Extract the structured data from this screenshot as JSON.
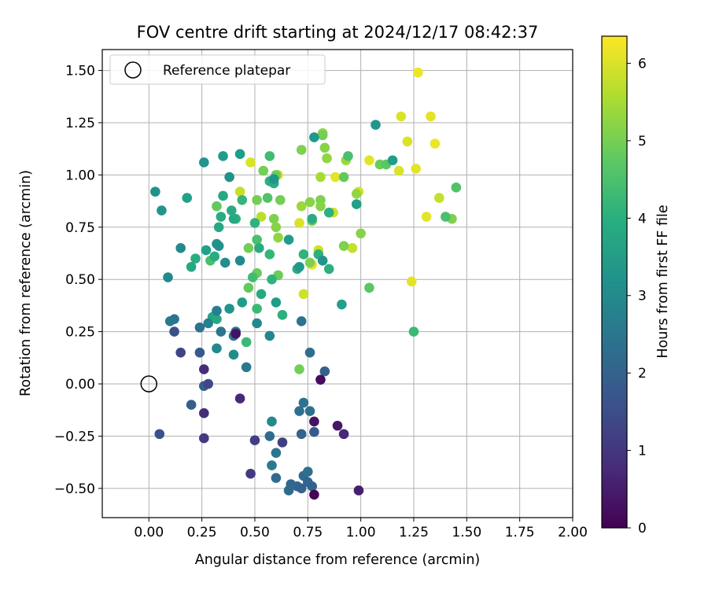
{
  "chart_data": {
    "type": "scatter",
    "title": "FOV centre drift starting at 2024/12/17 08:42:37",
    "xlabel": "Angular distance from reference (arcmin)",
    "ylabel": "Rotation from reference (arcmin)",
    "xlim": [
      -0.22,
      2.0
    ],
    "ylim": [
      -0.64,
      1.6
    ],
    "x_ticks": [
      "0.00",
      "0.25",
      "0.50",
      "0.75",
      "1.00",
      "1.25",
      "1.50",
      "1.75",
      "2.00"
    ],
    "y_ticks": [
      "−0.50",
      "−0.25",
      "0.00",
      "0.25",
      "0.50",
      "0.75",
      "1.00",
      "1.25",
      "1.50"
    ],
    "x_tick_values": [
      0,
      0.25,
      0.5,
      0.75,
      1.0,
      1.25,
      1.5,
      1.75,
      2.0
    ],
    "y_tick_values": [
      -0.5,
      -0.25,
      0,
      0.25,
      0.5,
      0.75,
      1.0,
      1.25,
      1.5
    ],
    "grid": true,
    "legend": {
      "position": "top-left",
      "entries": [
        "Reference platepar"
      ]
    },
    "reference_point": {
      "x": 0.0,
      "y": 0.0,
      "label": "Reference platepar"
    },
    "colorbar": {
      "label": "Hours from first FF file",
      "range": [
        0,
        6.35
      ],
      "ticks": [
        "0",
        "1",
        "2",
        "3",
        "4",
        "5",
        "6"
      ],
      "tick_values": [
        0,
        1,
        2,
        3,
        4,
        5,
        6
      ],
      "colormap": "viridis"
    },
    "points": [
      {
        "x": 1.27,
        "y": 1.49,
        "h": 6.2
      },
      {
        "x": 1.19,
        "y": 1.28,
        "h": 6.0
      },
      {
        "x": 1.33,
        "y": 1.28,
        "h": 6.1
      },
      {
        "x": 1.22,
        "y": 1.16,
        "h": 6.0
      },
      {
        "x": 1.35,
        "y": 1.15,
        "h": 6.2
      },
      {
        "x": 1.04,
        "y": 1.07,
        "h": 6.1
      },
      {
        "x": 1.18,
        "y": 1.02,
        "h": 6.0
      },
      {
        "x": 1.26,
        "y": 1.03,
        "h": 6.1
      },
      {
        "x": 0.48,
        "y": 1.06,
        "h": 6.0
      },
      {
        "x": 0.61,
        "y": 1.0,
        "h": 6.0
      },
      {
        "x": 0.88,
        "y": 0.99,
        "h": 6.1
      },
      {
        "x": 0.99,
        "y": 0.92,
        "h": 6.0
      },
      {
        "x": 1.37,
        "y": 0.89,
        "h": 5.8
      },
      {
        "x": 1.31,
        "y": 0.8,
        "h": 6.1
      },
      {
        "x": 0.87,
        "y": 0.82,
        "h": 5.9
      },
      {
        "x": 0.71,
        "y": 0.77,
        "h": 6.0
      },
      {
        "x": 0.8,
        "y": 0.64,
        "h": 5.9
      },
      {
        "x": 0.96,
        "y": 0.65,
        "h": 5.8
      },
      {
        "x": 0.77,
        "y": 0.57,
        "h": 6.2
      },
      {
        "x": 1.24,
        "y": 0.49,
        "h": 6.1
      },
      {
        "x": 0.73,
        "y": 0.43,
        "h": 5.9
      },
      {
        "x": 0.43,
        "y": 0.92,
        "h": 5.8
      },
      {
        "x": 0.53,
        "y": 0.8,
        "h": 5.7
      },
      {
        "x": 0.82,
        "y": 1.2,
        "h": 5.3
      },
      {
        "x": 0.83,
        "y": 1.13,
        "h": 5.2
      },
      {
        "x": 0.82,
        "y": 1.19,
        "h": 5.0
      },
      {
        "x": 0.72,
        "y": 1.12,
        "h": 5.1
      },
      {
        "x": 0.84,
        "y": 1.08,
        "h": 5.3
      },
      {
        "x": 0.81,
        "y": 0.99,
        "h": 5.5
      },
      {
        "x": 0.93,
        "y": 1.07,
        "h": 5.4
      },
      {
        "x": 0.72,
        "y": 0.85,
        "h": 5.4
      },
      {
        "x": 0.76,
        "y": 0.87,
        "h": 5.2
      },
      {
        "x": 0.81,
        "y": 0.88,
        "h": 5.1
      },
      {
        "x": 0.81,
        "y": 0.85,
        "h": 5.2
      },
      {
        "x": 0.77,
        "y": 0.78,
        "h": 5.0
      },
      {
        "x": 0.98,
        "y": 0.91,
        "h": 5.3
      },
      {
        "x": 1.0,
        "y": 0.72,
        "h": 5.2
      },
      {
        "x": 0.92,
        "y": 0.66,
        "h": 5.1
      },
      {
        "x": 0.76,
        "y": 0.58,
        "h": 5.1
      },
      {
        "x": 0.59,
        "y": 0.79,
        "h": 5.1
      },
      {
        "x": 0.6,
        "y": 0.75,
        "h": 5.2
      },
      {
        "x": 0.61,
        "y": 0.7,
        "h": 5.3
      },
      {
        "x": 0.62,
        "y": 0.88,
        "h": 5.0
      },
      {
        "x": 0.54,
        "y": 1.02,
        "h": 5.0
      },
      {
        "x": 0.6,
        "y": 1.0,
        "h": 4.9
      },
      {
        "x": 0.51,
        "y": 0.88,
        "h": 5.0
      },
      {
        "x": 0.47,
        "y": 0.65,
        "h": 5.0
      },
      {
        "x": 0.61,
        "y": 0.52,
        "h": 4.9
      },
      {
        "x": 0.51,
        "y": 0.53,
        "h": 4.9
      },
      {
        "x": 0.47,
        "y": 0.46,
        "h": 4.8
      },
      {
        "x": 0.71,
        "y": 0.07,
        "h": 5.0
      },
      {
        "x": 0.32,
        "y": 0.85,
        "h": 4.8
      },
      {
        "x": 0.29,
        "y": 0.59,
        "h": 4.5
      },
      {
        "x": 1.04,
        "y": 0.46,
        "h": 4.7
      },
      {
        "x": 0.92,
        "y": 0.99,
        "h": 4.8
      },
      {
        "x": 1.09,
        "y": 1.05,
        "h": 4.9
      },
      {
        "x": 1.12,
        "y": 1.05,
        "h": 4.7
      },
      {
        "x": 1.43,
        "y": 0.79,
        "h": 5.1
      },
      {
        "x": 1.45,
        "y": 0.94,
        "h": 4.6
      },
      {
        "x": 1.4,
        "y": 0.8,
        "h": 4.5
      },
      {
        "x": 0.94,
        "y": 1.09,
        "h": 4.5
      },
      {
        "x": 0.56,
        "y": 0.89,
        "h": 4.6
      },
      {
        "x": 1.25,
        "y": 0.25,
        "h": 4.3
      },
      {
        "x": 0.46,
        "y": 0.2,
        "h": 4.3
      },
      {
        "x": 0.49,
        "y": 0.51,
        "h": 4.4
      },
      {
        "x": 0.51,
        "y": 0.36,
        "h": 4.3
      },
      {
        "x": 0.51,
        "y": 0.69,
        "h": 4.5
      },
      {
        "x": 0.58,
        "y": 0.5,
        "h": 4.1
      },
      {
        "x": 0.57,
        "y": 0.97,
        "h": 4.0
      },
      {
        "x": 0.59,
        "y": 0.96,
        "h": 3.9
      },
      {
        "x": 0.57,
        "y": 1.09,
        "h": 4.4
      },
      {
        "x": 0.44,
        "y": 0.88,
        "h": 4.2
      },
      {
        "x": 0.5,
        "y": 0.77,
        "h": 4.1
      },
      {
        "x": 0.57,
        "y": 0.62,
        "h": 4.2
      },
      {
        "x": 0.52,
        "y": 0.65,
        "h": 3.9
      },
      {
        "x": 0.53,
        "y": 0.43,
        "h": 3.8
      },
      {
        "x": 0.63,
        "y": 0.33,
        "h": 4.0
      },
      {
        "x": 0.73,
        "y": 0.62,
        "h": 4.1
      },
      {
        "x": 0.8,
        "y": 0.62,
        "h": 4.0
      },
      {
        "x": 0.85,
        "y": 0.55,
        "h": 4.0
      },
      {
        "x": 0.7,
        "y": 0.55,
        "h": 3.9
      },
      {
        "x": 0.77,
        "y": 0.79,
        "h": 3.9
      },
      {
        "x": 0.85,
        "y": 0.82,
        "h": 4.0
      },
      {
        "x": 0.41,
        "y": 0.79,
        "h": 4.1
      },
      {
        "x": 0.34,
        "y": 0.8,
        "h": 3.9
      },
      {
        "x": 0.39,
        "y": 0.83,
        "h": 3.9
      },
      {
        "x": 0.4,
        "y": 0.79,
        "h": 3.8
      },
      {
        "x": 0.31,
        "y": 0.61,
        "h": 3.9
      },
      {
        "x": 0.22,
        "y": 0.6,
        "h": 3.9
      },
      {
        "x": 0.2,
        "y": 0.56,
        "h": 3.8
      },
      {
        "x": 0.3,
        "y": 0.32,
        "h": 3.7
      },
      {
        "x": 0.32,
        "y": 0.31,
        "h": 3.8
      },
      {
        "x": 0.33,
        "y": 0.75,
        "h": 3.8
      },
      {
        "x": 0.35,
        "y": 0.9,
        "h": 3.8
      },
      {
        "x": 0.27,
        "y": 0.64,
        "h": 3.6
      },
      {
        "x": 0.18,
        "y": 0.89,
        "h": 3.6
      },
      {
        "x": 0.35,
        "y": 1.09,
        "h": 3.5
      },
      {
        "x": 0.43,
        "y": 1.1,
        "h": 3.5
      },
      {
        "x": 0.78,
        "y": 1.18,
        "h": 3.4
      },
      {
        "x": 1.07,
        "y": 1.24,
        "h": 3.4
      },
      {
        "x": 1.15,
        "y": 1.07,
        "h": 3.5
      },
      {
        "x": 0.98,
        "y": 0.86,
        "h": 3.6
      },
      {
        "x": 0.91,
        "y": 0.38,
        "h": 3.6
      },
      {
        "x": 0.6,
        "y": 0.39,
        "h": 3.5
      },
      {
        "x": 0.44,
        "y": 0.39,
        "h": 3.5
      },
      {
        "x": 0.38,
        "y": 0.36,
        "h": 3.3
      },
      {
        "x": 0.32,
        "y": 0.67,
        "h": 3.3
      },
      {
        "x": 0.26,
        "y": 1.06,
        "h": 3.3
      },
      {
        "x": 0.33,
        "y": 0.66,
        "h": 3.2
      },
      {
        "x": 0.66,
        "y": 0.69,
        "h": 3.5
      },
      {
        "x": 0.71,
        "y": 0.56,
        "h": 3.4
      },
      {
        "x": 0.82,
        "y": 0.59,
        "h": 3.3
      },
      {
        "x": 0.36,
        "y": 0.58,
        "h": 3.1
      },
      {
        "x": 0.43,
        "y": 0.59,
        "h": 3.0
      },
      {
        "x": 0.51,
        "y": 0.29,
        "h": 3.0
      },
      {
        "x": 0.57,
        "y": 0.23,
        "h": 2.9
      },
      {
        "x": 0.58,
        "y": -0.18,
        "h": 3.0
      },
      {
        "x": 0.4,
        "y": 0.14,
        "h": 3.1
      },
      {
        "x": 0.32,
        "y": 0.17,
        "h": 3.0
      },
      {
        "x": 0.28,
        "y": 0.29,
        "h": 2.8
      },
      {
        "x": 0.09,
        "y": 0.51,
        "h": 3.0
      },
      {
        "x": 0.06,
        "y": 0.83,
        "h": 3.3
      },
      {
        "x": 0.03,
        "y": 0.92,
        "h": 3.2
      },
      {
        "x": 0.15,
        "y": 0.65,
        "h": 3.0
      },
      {
        "x": 0.32,
        "y": 0.35,
        "h": 2.7
      },
      {
        "x": 0.38,
        "y": 0.99,
        "h": 3.2
      },
      {
        "x": 0.59,
        "y": 0.98,
        "h": 3.3
      },
      {
        "x": 0.34,
        "y": 0.25,
        "h": 2.5
      },
      {
        "x": 0.41,
        "y": 0.25,
        "h": 2.4
      },
      {
        "x": 0.4,
        "y": 0.23,
        "h": 2.5
      },
      {
        "x": 0.24,
        "y": 0.27,
        "h": 2.4
      },
      {
        "x": 0.46,
        "y": 0.08,
        "h": 2.6
      },
      {
        "x": 0.72,
        "y": 0.3,
        "h": 2.4
      },
      {
        "x": 0.76,
        "y": 0.15,
        "h": 2.3
      },
      {
        "x": 0.83,
        "y": 0.06,
        "h": 2.0
      },
      {
        "x": 0.1,
        "y": 0.3,
        "h": 2.6
      },
      {
        "x": 0.12,
        "y": 0.31,
        "h": 2.5
      },
      {
        "x": 0.73,
        "y": -0.09,
        "h": 2.4
      },
      {
        "x": 0.71,
        "y": -0.13,
        "h": 2.3
      },
      {
        "x": 0.76,
        "y": -0.13,
        "h": 2.3
      },
      {
        "x": 0.57,
        "y": -0.25,
        "h": 2.2
      },
      {
        "x": 0.6,
        "y": -0.33,
        "h": 2.5
      },
      {
        "x": 0.58,
        "y": -0.39,
        "h": 2.6
      },
      {
        "x": 0.6,
        "y": -0.45,
        "h": 2.2
      },
      {
        "x": 0.67,
        "y": -0.48,
        "h": 2.1
      },
      {
        "x": 0.73,
        "y": -0.44,
        "h": 2.2
      },
      {
        "x": 0.75,
        "y": -0.42,
        "h": 2.3
      },
      {
        "x": 0.66,
        "y": -0.51,
        "h": 2.2
      },
      {
        "x": 0.7,
        "y": -0.49,
        "h": 2.1
      },
      {
        "x": 0.72,
        "y": -0.5,
        "h": 2.0
      },
      {
        "x": 0.75,
        "y": -0.47,
        "h": 2.1
      },
      {
        "x": 0.77,
        "y": -0.49,
        "h": 2.0
      },
      {
        "x": 0.72,
        "y": -0.24,
        "h": 2.0
      },
      {
        "x": 0.78,
        "y": -0.23,
        "h": 1.8
      },
      {
        "x": 0.2,
        "y": -0.1,
        "h": 1.9
      },
      {
        "x": 0.26,
        "y": -0.01,
        "h": 1.9
      },
      {
        "x": 0.24,
        "y": 0.15,
        "h": 1.8
      },
      {
        "x": 0.12,
        "y": 0.25,
        "h": 1.6
      },
      {
        "x": 0.05,
        "y": -0.24,
        "h": 1.6
      },
      {
        "x": 0.15,
        "y": 0.15,
        "h": 1.3
      },
      {
        "x": 0.28,
        "y": 0.0,
        "h": 1.4
      },
      {
        "x": 0.26,
        "y": -0.26,
        "h": 1.1
      },
      {
        "x": 0.5,
        "y": -0.27,
        "h": 1.2
      },
      {
        "x": 0.48,
        "y": -0.43,
        "h": 1.1
      },
      {
        "x": 0.63,
        "y": -0.28,
        "h": 1.2
      },
      {
        "x": 0.26,
        "y": 0.07,
        "h": 0.8
      },
      {
        "x": 0.26,
        "y": -0.14,
        "h": 0.8
      },
      {
        "x": 0.43,
        "y": -0.07,
        "h": 0.7
      },
      {
        "x": 0.92,
        "y": -0.24,
        "h": 0.7
      },
      {
        "x": 0.89,
        "y": -0.2,
        "h": 0.4
      },
      {
        "x": 0.78,
        "y": -0.18,
        "h": 0.3
      },
      {
        "x": 0.81,
        "y": 0.02,
        "h": 0.2
      },
      {
        "x": 0.78,
        "y": -0.53,
        "h": 0.1
      },
      {
        "x": 0.99,
        "y": -0.51,
        "h": 0.5
      },
      {
        "x": 0.41,
        "y": 0.24,
        "h": 0.3
      }
    ]
  }
}
